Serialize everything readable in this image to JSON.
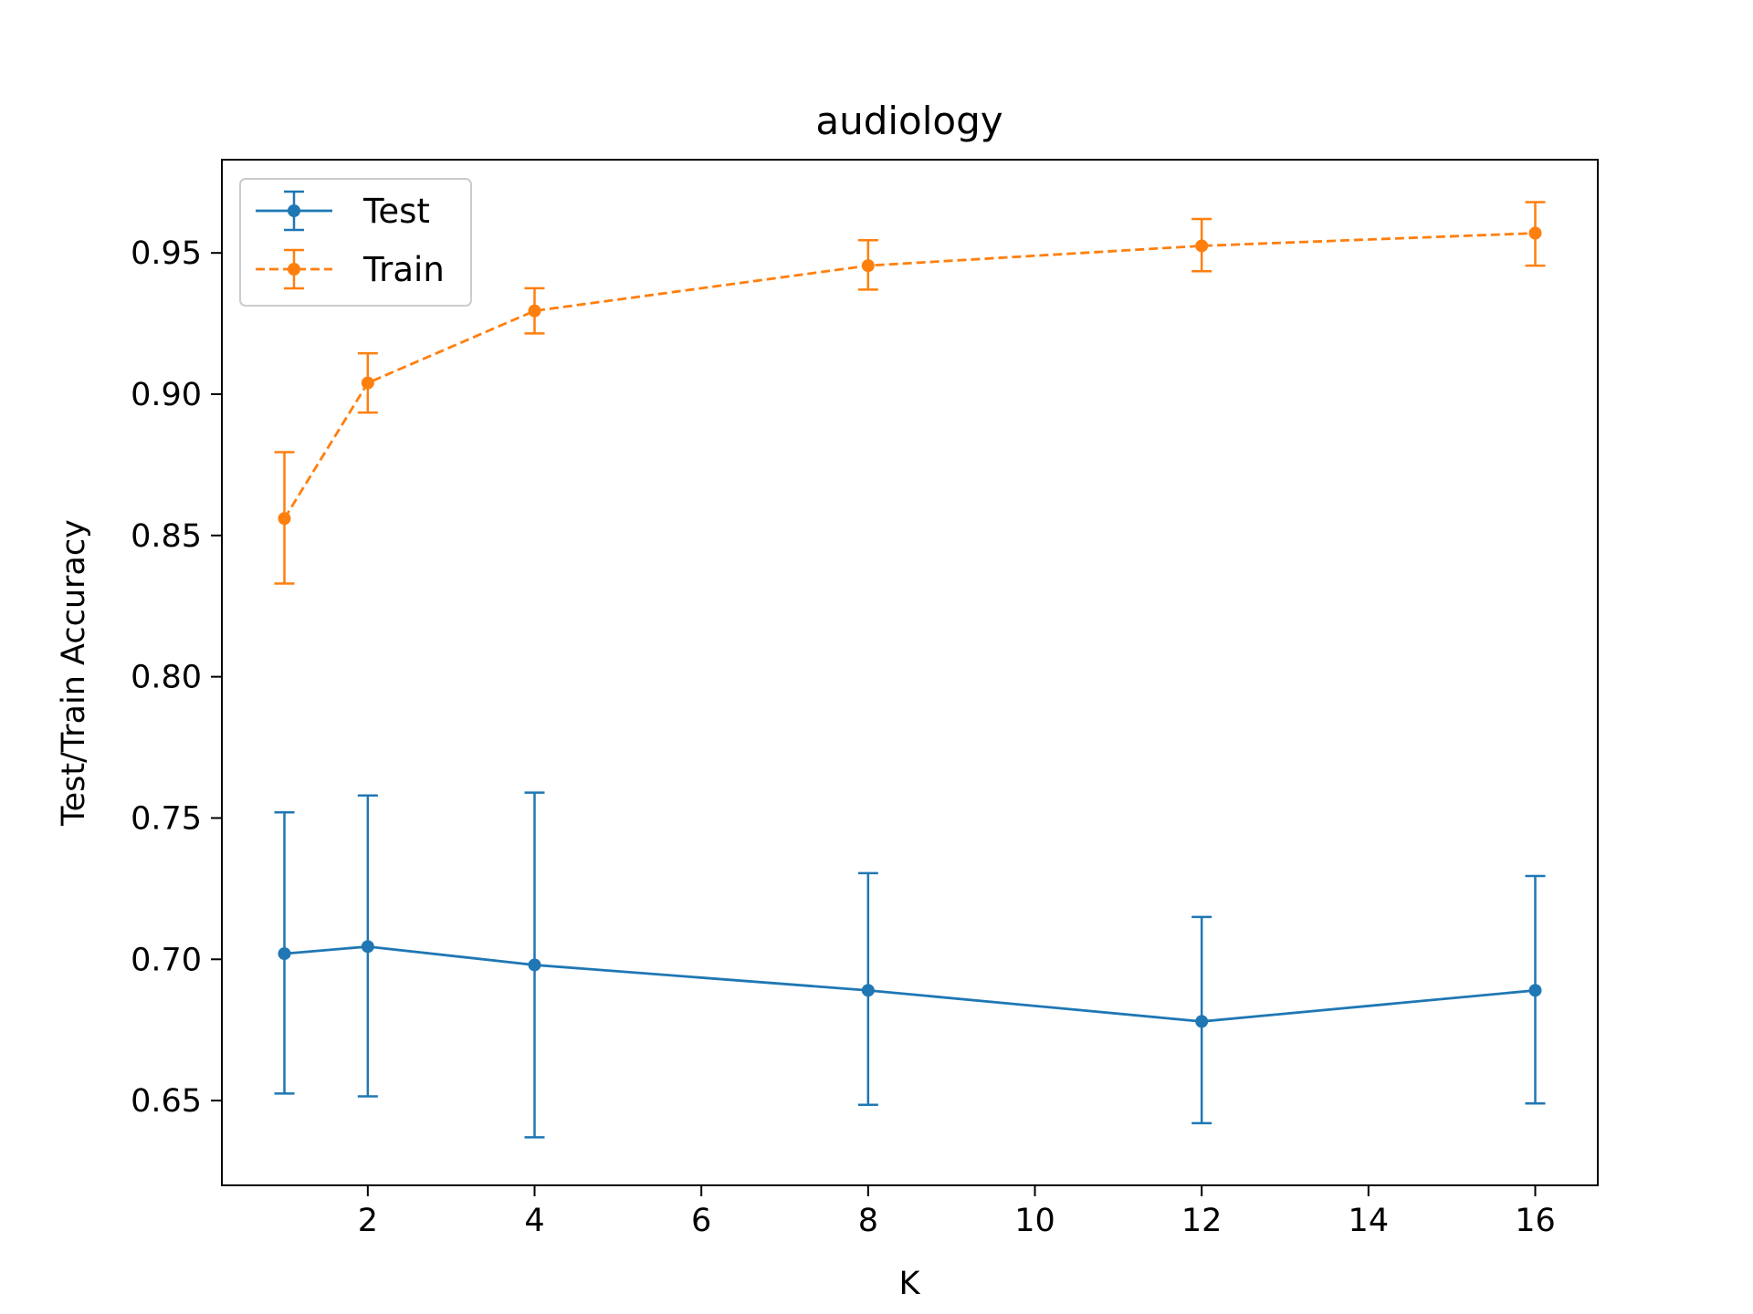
{
  "chart_data": {
    "type": "line",
    "title": "audiology",
    "xlabel": "K",
    "ylabel": "Test/Train Accuracy",
    "x": [
      1,
      2,
      4,
      8,
      12,
      16
    ],
    "xlim": [
      0.25,
      16.75
    ],
    "ylim": [
      0.62,
      0.983
    ],
    "xticks": [
      2,
      4,
      6,
      8,
      10,
      12,
      14,
      16
    ],
    "yticks": [
      0.65,
      0.7,
      0.75,
      0.8,
      0.85,
      0.9,
      0.95
    ],
    "ytick_labels": [
      "0.65",
      "0.70",
      "0.75",
      "0.80",
      "0.85",
      "0.90",
      "0.95"
    ],
    "grid": false,
    "legend": "upper-left",
    "series": [
      {
        "name": "Test",
        "color": "#1f77b4",
        "linestyle": "solid",
        "values": [
          0.702,
          0.7045,
          0.698,
          0.689,
          0.678,
          0.689
        ],
        "err_low": [
          0.6525,
          0.6515,
          0.637,
          0.6485,
          0.642,
          0.649
        ],
        "err_high": [
          0.752,
          0.758,
          0.759,
          0.7305,
          0.715,
          0.7295
        ]
      },
      {
        "name": "Train",
        "color": "#ff7f0e",
        "linestyle": "dashed",
        "values": [
          0.856,
          0.904,
          0.9295,
          0.9455,
          0.9525,
          0.957
        ],
        "err_low": [
          0.833,
          0.8935,
          0.9215,
          0.937,
          0.9435,
          0.9455
        ],
        "err_high": [
          0.8795,
          0.9145,
          0.9375,
          0.9545,
          0.962,
          0.968
        ]
      }
    ]
  }
}
